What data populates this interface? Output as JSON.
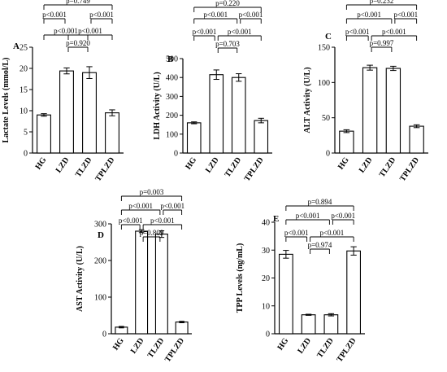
{
  "chart_data": [
    {
      "panel": "A",
      "type": "bar",
      "ylabel": "Lactate Levels (mmol/L)",
      "categories": [
        "HG",
        "LZD",
        "TLZD",
        "TPLZD"
      ],
      "values": [
        9.0,
        19.4,
        19.0,
        9.5
      ],
      "errors": [
        0.3,
        0.7,
        1.4,
        0.7
      ],
      "ylim": [
        0,
        25
      ],
      "yticks": [
        0,
        5,
        10,
        15,
        20,
        25
      ],
      "comparisons": [
        {
          "from": 0,
          "to": 3,
          "label": "p=0.749"
        },
        {
          "from": 0,
          "to": 1,
          "label": "p<0.001"
        },
        {
          "from": 2,
          "to": 3,
          "label": "p<0.001"
        },
        {
          "from": 0,
          "to": 2,
          "label": "p<0.001"
        },
        {
          "from": 1,
          "to": 3,
          "label": "p<0.001"
        },
        {
          "from": 1,
          "to": 2,
          "label": "p=0.920"
        }
      ]
    },
    {
      "panel": "B",
      "type": "bar",
      "ylabel": "LDH Activity (U/L)",
      "categories": [
        "HG",
        "LZD",
        "TLZD",
        "TPLZD"
      ],
      "values": [
        160,
        415,
        400,
        172
      ],
      "errors": [
        5,
        25,
        20,
        12
      ],
      "ylim": [
        0,
        500
      ],
      "yticks": [
        0,
        100,
        200,
        300,
        400,
        500
      ],
      "comparisons": [
        {
          "from": 0,
          "to": 3,
          "label": "p=0.220"
        },
        {
          "from": 0,
          "to": 2,
          "label": "p<0.001"
        },
        {
          "from": 2,
          "to": 3,
          "label": "p<0.001"
        },
        {
          "from": 0,
          "to": 1,
          "label": "p<0.001"
        },
        {
          "from": 1,
          "to": 3,
          "label": "p<0.001"
        },
        {
          "from": 1,
          "to": 2,
          "label": "p=0.703"
        }
      ]
    },
    {
      "panel": "C",
      "type": "bar",
      "ylabel": "ALT Activity (U/L)",
      "categories": [
        "HG",
        "LZD",
        "TLZD",
        "TPLZD"
      ],
      "values": [
        31,
        121,
        120,
        38
      ],
      "errors": [
        2,
        3.5,
        3,
        2
      ],
      "ylim": [
        0,
        150
      ],
      "yticks": [
        0,
        50,
        100,
        150
      ],
      "comparisons": [
        {
          "from": 0,
          "to": 3,
          "label": "p=0.232"
        },
        {
          "from": 0,
          "to": 2,
          "label": "p<0.001"
        },
        {
          "from": 2,
          "to": 3,
          "label": "p<0.001"
        },
        {
          "from": 0,
          "to": 1,
          "label": "p<0.001"
        },
        {
          "from": 1,
          "to": 3,
          "label": "p<0.001"
        },
        {
          "from": 1,
          "to": 2,
          "label": "p=0.997"
        }
      ]
    },
    {
      "panel": "D",
      "type": "bar",
      "ylabel": "AST Activity (U/L)",
      "categories": [
        "HG",
        "LZD",
        "TLZD",
        "TPLZD"
      ],
      "values": [
        18,
        280,
        272,
        32
      ],
      "errors": [
        2,
        4,
        9,
        2
      ],
      "ylim": [
        0,
        300
      ],
      "yticks": [
        0,
        100,
        200,
        300
      ],
      "comparisons": [
        {
          "from": 0,
          "to": 3,
          "label": "p=0.003"
        },
        {
          "from": 0,
          "to": 2,
          "label": "p<0.001"
        },
        {
          "from": 2,
          "to": 3,
          "label": "p<0.001"
        },
        {
          "from": 0,
          "to": 1,
          "label": "p<0.001"
        },
        {
          "from": 1,
          "to": 3,
          "label": "p<0.001"
        },
        {
          "from": 1,
          "to": 2,
          "label": "p=0.809"
        }
      ]
    },
    {
      "panel": "E",
      "type": "bar",
      "ylabel": "TPP Levels (ng/mL)",
      "categories": [
        "HG",
        "LZD",
        "TLZD",
        "TPLZD"
      ],
      "values": [
        28.5,
        6.8,
        6.8,
        29.7
      ],
      "errors": [
        1.4,
        0.2,
        0.4,
        1.5
      ],
      "ylim": [
        0,
        40
      ],
      "yticks": [
        0,
        10,
        20,
        30,
        40
      ],
      "comparisons": [
        {
          "from": 0,
          "to": 3,
          "label": "p=0.894"
        },
        {
          "from": 0,
          "to": 2,
          "label": "p<0.001"
        },
        {
          "from": 2,
          "to": 3,
          "label": "p<0.001"
        },
        {
          "from": 0,
          "to": 1,
          "label": "p<0.001"
        },
        {
          "from": 1,
          "to": 3,
          "label": "p<0.001"
        },
        {
          "from": 1,
          "to": 2,
          "label": "p=0.974"
        }
      ]
    }
  ]
}
